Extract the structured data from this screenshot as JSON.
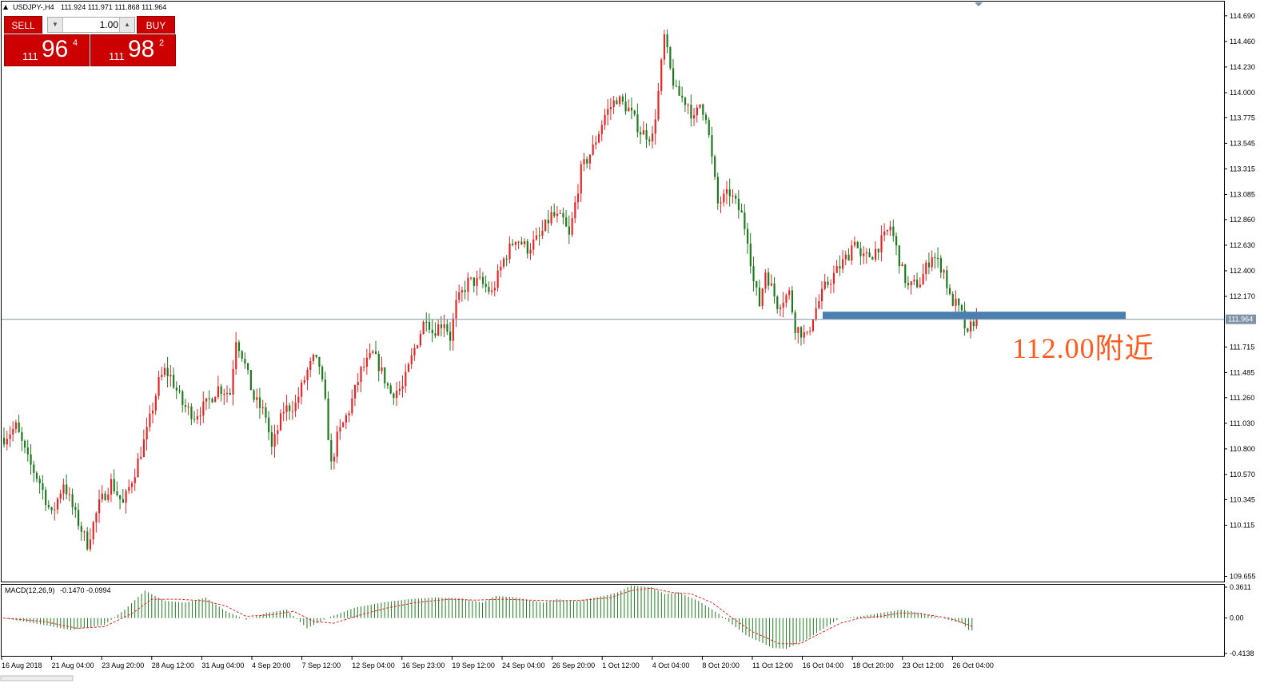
{
  "window": {
    "title_symbol": "USDJPY-,H4",
    "ohlc": "111.924 111.971 111.868 111.964"
  },
  "trade_panel": {
    "sell_label": "SELL",
    "buy_label": "BUY",
    "lot_value": "1.00",
    "sell_price_prefix": "111",
    "sell_price_main": "96",
    "sell_price_sup": "4",
    "buy_price_prefix": "111",
    "buy_price_main": "98",
    "buy_price_sup": "2",
    "icons": [
      "chevron-down-icon",
      "chevron-up-icon"
    ]
  },
  "annotation": {
    "text": "112.00附近",
    "color": "#ff5a1f",
    "support_level": 112.0,
    "zone_color": "#4a7fb0"
  },
  "colors": {
    "bull": "#e32626",
    "bear": "#1e7a1e",
    "grid_line": "#7f93a8",
    "price_label_bg": "#7f93a8"
  },
  "chart_data": [
    {
      "type": "candlestick",
      "symbol": "USDJPY",
      "timeframe": "H4",
      "y_ticks": [
        "114.690",
        "114.460",
        "114.230",
        "114.000",
        "113.775",
        "113.545",
        "113.315",
        "113.085",
        "112.860",
        "112.630",
        "112.400",
        "112.170",
        "111.715",
        "111.485",
        "111.260",
        "111.030",
        "110.800",
        "110.570",
        "110.345",
        "110.115",
        "109.655"
      ],
      "ylim": [
        109.63,
        114.71
      ],
      "current_price": "111.964",
      "x_ticks": [
        "16 Aug 2018",
        "21 Aug 04:00",
        "23 Aug 20:00",
        "28 Aug 12:00",
        "31 Aug 04:00",
        "4 Sep 20:00",
        "7 Sep 12:00",
        "12 Sep 04:00",
        "16 Sep 23:00",
        "19 Sep 12:00",
        "24 Sep 04:00",
        "26 Sep 20:00",
        "1 Oct 12:00",
        "4 Oct 04:00",
        "8 Oct 20:00",
        "11 Oct 12:00",
        "16 Oct 04:00",
        "18 Oct 20:00",
        "23 Oct 12:00",
        "26 Oct 04:00"
      ],
      "close_path": [
        [
          0,
          110.9
        ],
        [
          4,
          111.0
        ],
        [
          8,
          110.7
        ],
        [
          12,
          110.5
        ],
        [
          16,
          110.2
        ],
        [
          20,
          110.5
        ],
        [
          24,
          110.2
        ],
        [
          28,
          109.95
        ],
        [
          32,
          110.3
        ],
        [
          36,
          110.5
        ],
        [
          40,
          110.3
        ],
        [
          44,
          110.6
        ],
        [
          48,
          110.95
        ],
        [
          52,
          111.4
        ],
        [
          54,
          111.5
        ],
        [
          56,
          111.45
        ],
        [
          60,
          111.2
        ],
        [
          64,
          111.1
        ],
        [
          68,
          111.2
        ],
        [
          72,
          111.35
        ],
        [
          76,
          111.3
        ],
        [
          78,
          111.8
        ],
        [
          80,
          111.65
        ],
        [
          84,
          111.25
        ],
        [
          88,
          111.1
        ],
        [
          90,
          110.8
        ],
        [
          94,
          111.15
        ],
        [
          98,
          111.2
        ],
        [
          102,
          111.5
        ],
        [
          104,
          111.6
        ],
        [
          106,
          111.55
        ],
        [
          108,
          111.2
        ],
        [
          110,
          110.65
        ],
        [
          112,
          110.9
        ],
        [
          116,
          111.15
        ],
        [
          120,
          111.5
        ],
        [
          124,
          111.65
        ],
        [
          126,
          111.55
        ],
        [
          130,
          111.3
        ],
        [
          134,
          111.35
        ],
        [
          138,
          111.7
        ],
        [
          142,
          112.0
        ],
        [
          144,
          111.85
        ],
        [
          148,
          111.95
        ],
        [
          150,
          111.8
        ],
        [
          152,
          112.1
        ],
        [
          156,
          112.3
        ],
        [
          160,
          112.3
        ],
        [
          164,
          112.2
        ],
        [
          168,
          112.5
        ],
        [
          172,
          112.7
        ],
        [
          176,
          112.6
        ],
        [
          180,
          112.7
        ],
        [
          184,
          112.9
        ],
        [
          188,
          112.85
        ],
        [
          190,
          112.7
        ],
        [
          194,
          113.3
        ],
        [
          198,
          113.5
        ],
        [
          202,
          113.8
        ],
        [
          206,
          113.95
        ],
        [
          210,
          113.85
        ],
        [
          214,
          113.65
        ],
        [
          218,
          113.6
        ],
        [
          220,
          114.0
        ],
        [
          222,
          114.5
        ],
        [
          224,
          114.2
        ],
        [
          226,
          114.0
        ],
        [
          230,
          113.9
        ],
        [
          232,
          113.75
        ],
        [
          234,
          113.9
        ],
        [
          236,
          113.8
        ],
        [
          238,
          113.4
        ],
        [
          240,
          113.0
        ],
        [
          244,
          113.1
        ],
        [
          248,
          112.9
        ],
        [
          250,
          112.7
        ],
        [
          252,
          112.3
        ],
        [
          254,
          112.1
        ],
        [
          256,
          112.4
        ],
        [
          260,
          112.1
        ],
        [
          264,
          112.2
        ],
        [
          266,
          111.9
        ],
        [
          270,
          111.8
        ],
        [
          272,
          112.0
        ],
        [
          276,
          112.25
        ],
        [
          280,
          112.4
        ],
        [
          284,
          112.55
        ],
        [
          286,
          112.7
        ],
        [
          288,
          112.5
        ],
        [
          292,
          112.55
        ],
        [
          296,
          112.7
        ],
        [
          298,
          112.8
        ],
        [
          300,
          112.6
        ],
        [
          302,
          112.4
        ],
        [
          304,
          112.25
        ],
        [
          308,
          112.3
        ],
        [
          312,
          112.55
        ],
        [
          316,
          112.4
        ],
        [
          318,
          112.15
        ],
        [
          320,
          112.1
        ],
        [
          322,
          112.0
        ],
        [
          324,
          111.8
        ],
        [
          325,
          111.9
        ],
        [
          326,
          111.95
        ],
        [
          327,
          111.97
        ]
      ]
    },
    {
      "type": "bar",
      "name": "MACD(12,26,9)",
      "values_label": "-0.1470 -0.0994",
      "y_ticks": [
        "0.3611",
        "0.00",
        "-0.4138"
      ],
      "ylim": [
        -0.4138,
        0.3611
      ],
      "histogram_path": [
        [
          0,
          0.0
        ],
        [
          12,
          -0.08
        ],
        [
          20,
          -0.14
        ],
        [
          30,
          -0.08
        ],
        [
          36,
          0.1
        ],
        [
          42,
          0.32
        ],
        [
          48,
          0.2
        ],
        [
          54,
          0.18
        ],
        [
          60,
          0.24
        ],
        [
          66,
          0.08
        ],
        [
          72,
          -0.02
        ],
        [
          78,
          0.06
        ],
        [
          84,
          0.1
        ],
        [
          90,
          -0.12
        ],
        [
          96,
          0.0
        ],
        [
          104,
          0.12
        ],
        [
          112,
          0.18
        ],
        [
          120,
          0.22
        ],
        [
          128,
          0.24
        ],
        [
          136,
          0.23
        ],
        [
          142,
          0.18
        ],
        [
          146,
          0.26
        ],
        [
          152,
          0.24
        ],
        [
          160,
          0.18
        ],
        [
          164,
          0.22
        ],
        [
          170,
          0.2
        ],
        [
          178,
          0.26
        ],
        [
          182,
          0.3
        ],
        [
          186,
          0.38
        ],
        [
          192,
          0.36
        ],
        [
          196,
          0.28
        ],
        [
          200,
          0.3
        ],
        [
          206,
          0.2
        ],
        [
          212,
          0.05
        ],
        [
          220,
          -0.2
        ],
        [
          228,
          -0.35
        ],
        [
          232,
          -0.36
        ],
        [
          238,
          -0.25
        ],
        [
          244,
          -0.1
        ],
        [
          248,
          0.0
        ],
        [
          254,
          0.02
        ],
        [
          260,
          0.06
        ],
        [
          266,
          0.1
        ],
        [
          272,
          0.06
        ],
        [
          278,
          0.0
        ],
        [
          284,
          -0.06
        ],
        [
          286,
          -0.14
        ],
        [
          287,
          -0.147
        ]
      ],
      "signal_path": [
        [
          0,
          0.0
        ],
        [
          12,
          -0.04
        ],
        [
          22,
          -0.12
        ],
        [
          30,
          -0.1
        ],
        [
          38,
          0.05
        ],
        [
          44,
          0.22
        ],
        [
          52,
          0.22
        ],
        [
          60,
          0.2
        ],
        [
          66,
          0.14
        ],
        [
          72,
          0.02
        ],
        [
          80,
          0.04
        ],
        [
          86,
          0.08
        ],
        [
          92,
          -0.04
        ],
        [
          98,
          -0.06
        ],
        [
          106,
          0.04
        ],
        [
          114,
          0.12
        ],
        [
          122,
          0.18
        ],
        [
          132,
          0.22
        ],
        [
          140,
          0.21
        ],
        [
          148,
          0.22
        ],
        [
          156,
          0.21
        ],
        [
          164,
          0.2
        ],
        [
          172,
          0.21
        ],
        [
          180,
          0.24
        ],
        [
          186,
          0.32
        ],
        [
          192,
          0.35
        ],
        [
          198,
          0.3
        ],
        [
          204,
          0.28
        ],
        [
          210,
          0.18
        ],
        [
          216,
          0.0
        ],
        [
          222,
          -0.16
        ],
        [
          230,
          -0.3
        ],
        [
          236,
          -0.3
        ],
        [
          242,
          -0.18
        ],
        [
          248,
          -0.06
        ],
        [
          254,
          0.0
        ],
        [
          260,
          0.02
        ],
        [
          266,
          0.06
        ],
        [
          272,
          0.05
        ],
        [
          280,
          0.0
        ],
        [
          286,
          -0.08
        ],
        [
          287,
          -0.099
        ]
      ]
    }
  ]
}
